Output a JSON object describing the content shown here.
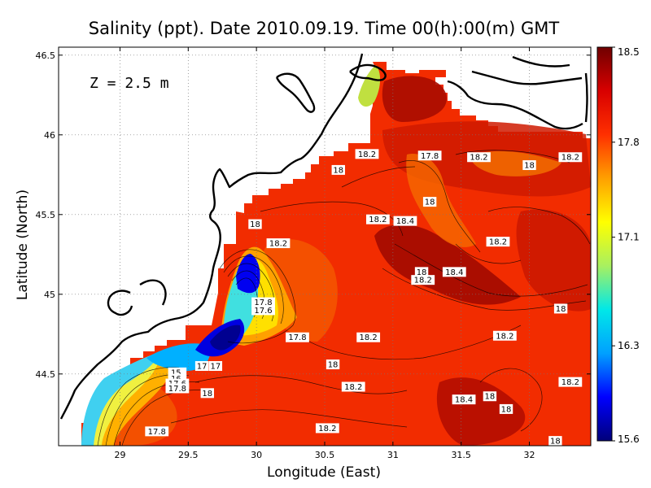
{
  "chart_data": {
    "type": "heatmap",
    "title": "Salinity (ppt). Date 2010.09.19. Time 00(h):00(m) GMT",
    "xlabel": "Longitude (East)",
    "ylabel": "Latitude (North)",
    "annotation": "Z = 2.5 m",
    "xlim": [
      28.55,
      32.45
    ],
    "ylim": [
      44.05,
      46.55
    ],
    "x_ticks": [
      {
        "value": 29,
        "label": "29"
      },
      {
        "value": 29.5,
        "label": "29.5"
      },
      {
        "value": 30,
        "label": "30"
      },
      {
        "value": 30.5,
        "label": "30.5"
      },
      {
        "value": 31,
        "label": "31"
      },
      {
        "value": 31.5,
        "label": "31.5"
      },
      {
        "value": 32,
        "label": "32"
      }
    ],
    "y_ticks": [
      {
        "value": 44.5,
        "label": "44.5"
      },
      {
        "value": 45,
        "label": "45"
      },
      {
        "value": 45.5,
        "label": "45.5"
      },
      {
        "value": 46,
        "label": "46"
      },
      {
        "value": 46.5,
        "label": "46.5"
      }
    ],
    "grid": true,
    "colorbar": {
      "range": [
        15.6,
        18.5
      ],
      "ticks": [
        {
          "value": 18.5,
          "label": "18.5"
        },
        {
          "value": 17.8,
          "label": "17.8"
        },
        {
          "value": 17.1,
          "label": "17.1"
        },
        {
          "value": 16.3,
          "label": "16.3"
        },
        {
          "value": 15.6,
          "label": "15.6"
        }
      ],
      "colors": [
        "#00007a",
        "#0000ff",
        "#00a0ff",
        "#00e8e8",
        "#a8f060",
        "#ffff00",
        "#ffa000",
        "#ff3000",
        "#d80000",
        "#700000"
      ]
    },
    "contour_labels": [
      {
        "lon": 30.81,
        "lat": 45.88,
        "value": "18.2"
      },
      {
        "lon": 31.27,
        "lat": 45.87,
        "value": "17.8"
      },
      {
        "lon": 31.63,
        "lat": 45.86,
        "value": "18.2"
      },
      {
        "lon": 32.3,
        "lat": 45.86,
        "value": "18.2"
      },
      {
        "lon": 32.0,
        "lat": 45.81,
        "value": "18"
      },
      {
        "lon": 30.6,
        "lat": 45.78,
        "value": "18"
      },
      {
        "lon": 31.27,
        "lat": 45.58,
        "value": "18"
      },
      {
        "lon": 30.89,
        "lat": 45.47,
        "value": "18.2"
      },
      {
        "lon": 31.09,
        "lat": 45.46,
        "value": "18.4"
      },
      {
        "lon": 29.99,
        "lat": 45.44,
        "value": "18"
      },
      {
        "lon": 31.77,
        "lat": 45.33,
        "value": "18.2"
      },
      {
        "lon": 30.16,
        "lat": 45.32,
        "value": "18.2"
      },
      {
        "lon": 31.21,
        "lat": 45.14,
        "value": "18"
      },
      {
        "lon": 31.45,
        "lat": 45.14,
        "value": "18.4"
      },
      {
        "lon": 31.22,
        "lat": 45.09,
        "value": "18.2"
      },
      {
        "lon": 30.05,
        "lat": 44.95,
        "value": "17.8"
      },
      {
        "lon": 30.05,
        "lat": 44.9,
        "value": "17.6"
      },
      {
        "lon": 32.23,
        "lat": 44.91,
        "value": "18"
      },
      {
        "lon": 30.3,
        "lat": 44.73,
        "value": "17.8"
      },
      {
        "lon": 30.82,
        "lat": 44.73,
        "value": "18.2"
      },
      {
        "lon": 31.82,
        "lat": 44.74,
        "value": "18.2"
      },
      {
        "lon": 30.56,
        "lat": 44.56,
        "value": "18"
      },
      {
        "lon": 29.7,
        "lat": 44.55,
        "value": "17"
      },
      {
        "lon": 29.6,
        "lat": 44.55,
        "value": "17"
      },
      {
        "lon": 29.42,
        "lat": 44.51,
        "value": "15."
      },
      {
        "lon": 29.42,
        "lat": 44.47,
        "value": "16."
      },
      {
        "lon": 29.42,
        "lat": 44.44,
        "value": "17.6"
      },
      {
        "lon": 29.42,
        "lat": 44.41,
        "value": "17.8"
      },
      {
        "lon": 32.3,
        "lat": 44.45,
        "value": "18.2"
      },
      {
        "lon": 30.71,
        "lat": 44.42,
        "value": "18.2"
      },
      {
        "lon": 29.64,
        "lat": 44.38,
        "value": "18"
      },
      {
        "lon": 31.71,
        "lat": 44.36,
        "value": "18"
      },
      {
        "lon": 31.52,
        "lat": 44.34,
        "value": "18.4"
      },
      {
        "lon": 31.83,
        "lat": 44.28,
        "value": "18"
      },
      {
        "lon": 29.27,
        "lat": 44.14,
        "value": "17.8"
      },
      {
        "lon": 30.52,
        "lat": 44.16,
        "value": "18.2"
      },
      {
        "lon": 32.19,
        "lat": 44.08,
        "value": "18"
      }
    ]
  }
}
